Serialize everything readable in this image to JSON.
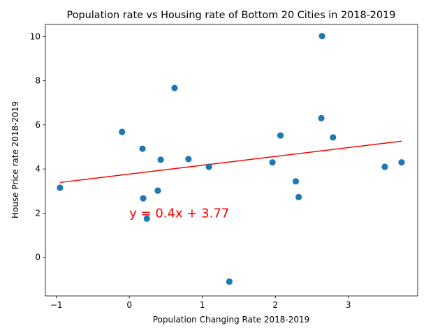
{
  "chart_data": {
    "type": "scatter",
    "title": "Population rate vs Housing rate of Bottom 20 Cities in 2018-2019",
    "xlabel": "Population Changing Rate 2018-2019",
    "ylabel": "House Price rate 2018-2019",
    "xlim": [
      -1.15,
      3.95
    ],
    "ylim": [
      -1.75,
      10.55
    ],
    "xticks": [
      -1,
      0,
      1,
      2,
      3
    ],
    "yticks": [
      0,
      2,
      4,
      6,
      8,
      10
    ],
    "grid": false,
    "point_color": "#1f77b4",
    "points": [
      {
        "x": -0.95,
        "y": 3.15
      },
      {
        "x": -0.1,
        "y": 5.68
      },
      {
        "x": 0.18,
        "y": 4.92
      },
      {
        "x": 0.19,
        "y": 2.67
      },
      {
        "x": 0.24,
        "y": 1.75
      },
      {
        "x": 0.39,
        "y": 3.02
      },
      {
        "x": 0.43,
        "y": 4.42
      },
      {
        "x": 0.62,
        "y": 7.67
      },
      {
        "x": 0.81,
        "y": 4.45
      },
      {
        "x": 1.09,
        "y": 4.1
      },
      {
        "x": 1.37,
        "y": -1.1
      },
      {
        "x": 1.96,
        "y": 4.3
      },
      {
        "x": 2.07,
        "y": 5.52
      },
      {
        "x": 2.28,
        "y": 3.44
      },
      {
        "x": 2.32,
        "y": 2.73
      },
      {
        "x": 2.63,
        "y": 6.3
      },
      {
        "x": 2.64,
        "y": 10.02
      },
      {
        "x": 2.79,
        "y": 5.43
      },
      {
        "x": 3.5,
        "y": 4.1
      },
      {
        "x": 3.73,
        "y": 4.3
      }
    ],
    "regression": {
      "slope": 0.4,
      "intercept": 3.77,
      "x_range": [
        -0.95,
        3.73
      ],
      "color": "#ff0000"
    },
    "annotation": {
      "text": "y = 0.4x + 3.77",
      "x": 0,
      "y": 2,
      "color": "#ff0000"
    }
  }
}
